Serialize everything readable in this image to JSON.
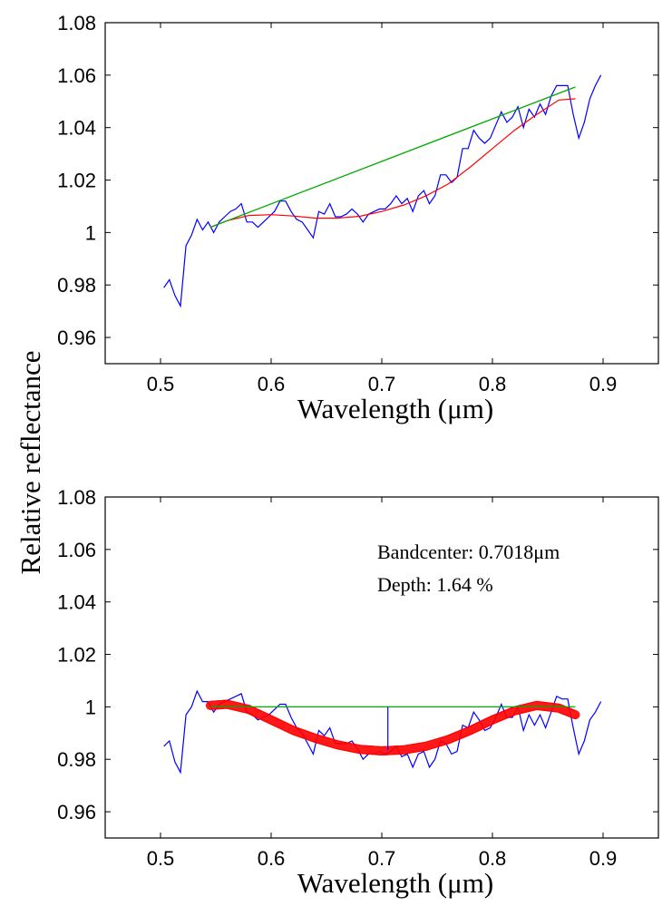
{
  "figure": {
    "shared_ylabel": "Relative reflectance"
  },
  "chart_data": [
    {
      "type": "line",
      "title": "",
      "xlabel": "Wavelength (μm)",
      "ylabel": "Relative reflectance",
      "xlim": [
        0.45,
        0.95
      ],
      "ylim": [
        0.95,
        1.08
      ],
      "xticks": [
        0.5,
        0.6,
        0.7,
        0.8,
        0.9
      ],
      "xtick_labels": [
        "0.5",
        "0.6",
        "0.7",
        "0.8",
        "0.9"
      ],
      "yticks": [
        0.96,
        0.98,
        1.0,
        1.02,
        1.04,
        1.06,
        1.08
      ],
      "ytick_labels": [
        "0.96",
        "0.98",
        "1",
        "1.02",
        "1.04",
        "1.06",
        "1.08"
      ],
      "grid": false,
      "series": [
        {
          "name": "spectrum",
          "color": "#0000ff",
          "x": [
            0.503,
            0.508,
            0.513,
            0.518,
            0.523,
            0.528,
            0.533,
            0.538,
            0.543,
            0.548,
            0.553,
            0.558,
            0.563,
            0.568,
            0.573,
            0.578,
            0.583,
            0.588,
            0.593,
            0.598,
            0.603,
            0.608,
            0.613,
            0.618,
            0.623,
            0.628,
            0.633,
            0.638,
            0.643,
            0.648,
            0.653,
            0.658,
            0.663,
            0.668,
            0.673,
            0.678,
            0.683,
            0.688,
            0.693,
            0.698,
            0.703,
            0.708,
            0.713,
            0.718,
            0.723,
            0.728,
            0.733,
            0.738,
            0.743,
            0.748,
            0.753,
            0.758,
            0.763,
            0.768,
            0.773,
            0.778,
            0.783,
            0.788,
            0.793,
            0.798,
            0.803,
            0.808,
            0.813,
            0.818,
            0.823,
            0.828,
            0.833,
            0.838,
            0.843,
            0.848,
            0.853,
            0.858,
            0.863,
            0.868,
            0.873,
            0.878,
            0.883,
            0.888,
            0.893,
            0.898
          ],
          "y": [
            0.979,
            0.982,
            0.976,
            0.972,
            0.995,
            0.999,
            1.005,
            1.001,
            1.004,
            1.0,
            1.004,
            1.006,
            1.008,
            1.009,
            1.011,
            1.004,
            1.004,
            1.002,
            1.004,
            1.006,
            1.008,
            1.012,
            1.012,
            1.008,
            1.005,
            1.004,
            1.001,
            0.998,
            1.008,
            1.007,
            1.011,
            1.006,
            1.006,
            1.007,
            1.009,
            1.007,
            1.004,
            1.007,
            1.008,
            1.009,
            1.009,
            1.011,
            1.014,
            1.011,
            1.013,
            1.008,
            1.014,
            1.016,
            1.011,
            1.014,
            1.022,
            1.022,
            1.019,
            1.021,
            1.032,
            1.032,
            1.039,
            1.036,
            1.034,
            1.036,
            1.041,
            1.046,
            1.042,
            1.044,
            1.048,
            1.04,
            1.047,
            1.044,
            1.049,
            1.045,
            1.052,
            1.056,
            1.056,
            1.056,
            1.045,
            1.036,
            1.042,
            1.051,
            1.056,
            1.06
          ]
        },
        {
          "name": "polynomial-fit",
          "color": "#ff0000",
          "x": [
            0.545,
            0.56,
            0.58,
            0.6,
            0.62,
            0.64,
            0.66,
            0.68,
            0.7,
            0.72,
            0.74,
            0.76,
            0.78,
            0.8,
            0.82,
            0.84,
            0.86,
            0.875
          ],
          "y": [
            1.002,
            1.0045,
            1.0065,
            1.0068,
            1.0063,
            1.0055,
            1.0055,
            1.0062,
            1.008,
            1.0105,
            1.014,
            1.0185,
            1.025,
            1.032,
            1.039,
            1.045,
            1.0505,
            1.051
          ]
        },
        {
          "name": "continuum",
          "color": "#00aa00",
          "x": [
            0.545,
            0.875
          ],
          "y": [
            1.002,
            1.0555
          ]
        }
      ]
    },
    {
      "type": "line",
      "title": "",
      "xlabel": "Wavelength (μm)",
      "ylabel": "Relative reflectance",
      "xlim": [
        0.45,
        0.95
      ],
      "ylim": [
        0.95,
        1.08
      ],
      "xticks": [
        0.5,
        0.6,
        0.7,
        0.8,
        0.9
      ],
      "xtick_labels": [
        "0.5",
        "0.6",
        "0.7",
        "0.8",
        "0.9"
      ],
      "yticks": [
        0.96,
        0.98,
        1.0,
        1.02,
        1.04,
        1.06,
        1.08
      ],
      "ytick_labels": [
        "0.96",
        "0.98",
        "1",
        "1.02",
        "1.04",
        "1.06",
        "1.08"
      ],
      "grid": false,
      "annotations": [
        "Bandcenter: 0.7018μm",
        "Depth: 1.64 %"
      ],
      "band_center": 0.7018,
      "series": [
        {
          "name": "continuum-removed-spectrum",
          "color": "#0000ff",
          "x": [
            0.503,
            0.508,
            0.513,
            0.518,
            0.523,
            0.528,
            0.533,
            0.538,
            0.543,
            0.548,
            0.553,
            0.558,
            0.563,
            0.568,
            0.573,
            0.578,
            0.583,
            0.588,
            0.593,
            0.598,
            0.603,
            0.608,
            0.613,
            0.618,
            0.623,
            0.628,
            0.633,
            0.638,
            0.643,
            0.648,
            0.653,
            0.658,
            0.663,
            0.668,
            0.673,
            0.678,
            0.683,
            0.688,
            0.693,
            0.698,
            0.703,
            0.708,
            0.713,
            0.718,
            0.723,
            0.728,
            0.733,
            0.738,
            0.743,
            0.748,
            0.753,
            0.758,
            0.763,
            0.768,
            0.773,
            0.778,
            0.783,
            0.788,
            0.793,
            0.798,
            0.803,
            0.808,
            0.813,
            0.818,
            0.823,
            0.828,
            0.833,
            0.838,
            0.843,
            0.848,
            0.853,
            0.858,
            0.863,
            0.868,
            0.873,
            0.878,
            0.883,
            0.888,
            0.893,
            0.898
          ],
          "y": [
            0.985,
            0.987,
            0.979,
            0.975,
            0.997,
            1.0,
            1.006,
            1.002,
            1.002,
            0.998,
            1.001,
            1.002,
            1.003,
            1.004,
            1.005,
            0.998,
            0.997,
            0.995,
            0.996,
            0.997,
            0.999,
            1.001,
            1.001,
            0.996,
            0.992,
            0.99,
            0.986,
            0.982,
            0.991,
            0.989,
            0.992,
            0.986,
            0.986,
            0.986,
            0.987,
            0.984,
            0.98,
            0.982,
            0.982,
            0.983,
            0.982,
            0.983,
            0.985,
            0.981,
            0.982,
            0.977,
            0.982,
            0.983,
            0.977,
            0.98,
            0.987,
            0.986,
            0.982,
            0.983,
            0.993,
            0.992,
            0.998,
            0.995,
            0.991,
            0.992,
            0.996,
            1.001,
            0.996,
            0.996,
            1.0,
            0.991,
            0.997,
            0.993,
            0.997,
            0.992,
            0.998,
            1.004,
            1.003,
            1.003,
            0.992,
            0.982,
            0.987,
            0.995,
            0.998,
            1.002
          ]
        },
        {
          "name": "band-fit",
          "color": "#ff0000",
          "x": [
            0.545,
            0.56,
            0.58,
            0.6,
            0.62,
            0.64,
            0.66,
            0.68,
            0.7,
            0.72,
            0.74,
            0.76,
            0.78,
            0.8,
            0.82,
            0.84,
            0.86,
            0.875
          ],
          "y": [
            1.0005,
            1.001,
            0.999,
            0.995,
            0.991,
            0.988,
            0.9855,
            0.9838,
            0.9832,
            0.9836,
            0.985,
            0.9875,
            0.991,
            0.995,
            0.9985,
            1.0005,
            0.9995,
            0.997
          ]
        },
        {
          "name": "continuum",
          "color": "#00aa00",
          "x": [
            0.545,
            0.875
          ],
          "y": [
            1.0,
            1.0
          ]
        },
        {
          "name": "band-center-marker",
          "color": "#0000ff",
          "x": [
            0.7055,
            0.7055
          ],
          "y": [
            0.9835,
            1.0
          ]
        }
      ]
    }
  ]
}
